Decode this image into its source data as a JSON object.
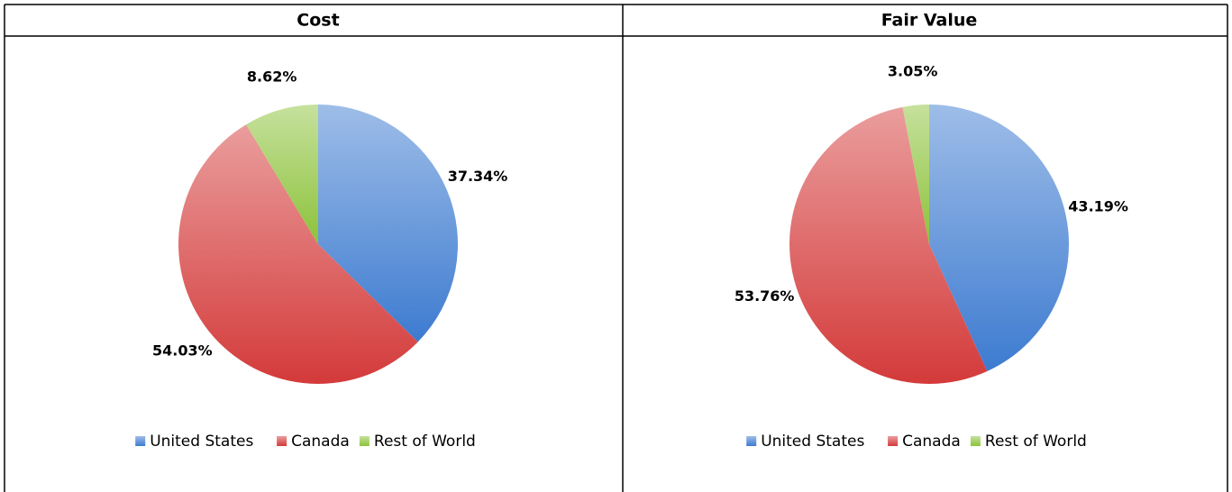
{
  "chart_data": [
    {
      "type": "pie",
      "title": "Cost",
      "categories": [
        "United States",
        "Canada",
        "Rest of World"
      ],
      "values": [
        37.34,
        54.03,
        8.62
      ],
      "value_labels": [
        "37.34%",
        "54.03%",
        "8.62%"
      ],
      "colors": [
        "#3d7bd0",
        "#d43a3a",
        "#8cc23a"
      ]
    },
    {
      "type": "pie",
      "title": "Fair Value",
      "categories": [
        "United States",
        "Canada",
        "Rest of World"
      ],
      "values": [
        43.19,
        53.76,
        3.05
      ],
      "value_labels": [
        "43.19%",
        "53.76%",
        "3.05%"
      ],
      "colors": [
        "#3d7bd0",
        "#d43a3a",
        "#8cc23a"
      ]
    }
  ]
}
